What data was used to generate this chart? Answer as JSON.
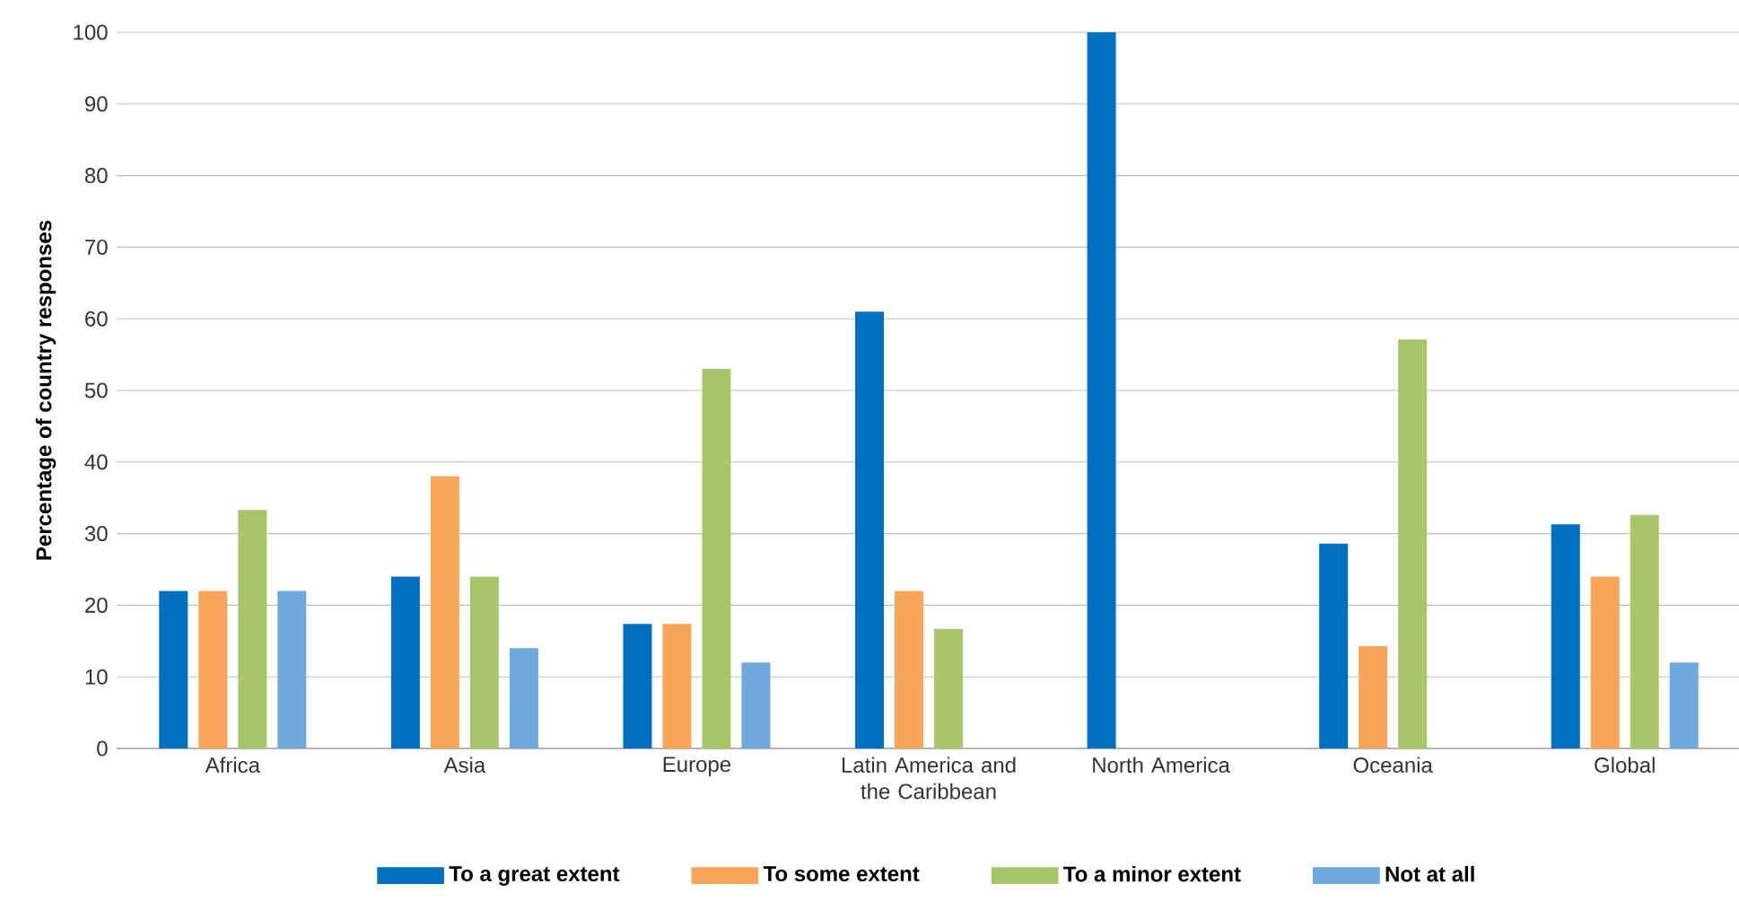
{
  "chart_data": {
    "type": "bar",
    "ylabel": "Percentage of country responses",
    "categories": [
      "Africa",
      "Asia",
      "Europe",
      "Latin America and the Caribbean",
      "North America",
      "Oceania",
      "Global"
    ],
    "series": [
      {
        "name": "To a great extent",
        "color": "#0070c0",
        "values": [
          22,
          24,
          17.4,
          61,
          100,
          28.6,
          31.3
        ]
      },
      {
        "name": "To some extent",
        "color": "#f7a558",
        "values": [
          22,
          38,
          17.4,
          22,
          0,
          14.3,
          24
        ]
      },
      {
        "name": "To a minor extent",
        "color": "#a9c56a",
        "values": [
          33.3,
          24,
          53,
          16.7,
          0,
          57.1,
          32.6
        ]
      },
      {
        "name": "Not at all",
        "color": "#6ea8dc",
        "values": [
          22,
          14,
          12,
          0,
          0,
          0,
          12
        ]
      }
    ],
    "ylim": [
      0,
      100
    ],
    "yticks": [
      0,
      10,
      20,
      30,
      40,
      50,
      60,
      70,
      80,
      90,
      100
    ],
    "grid": "y",
    "legend": "bottom"
  }
}
